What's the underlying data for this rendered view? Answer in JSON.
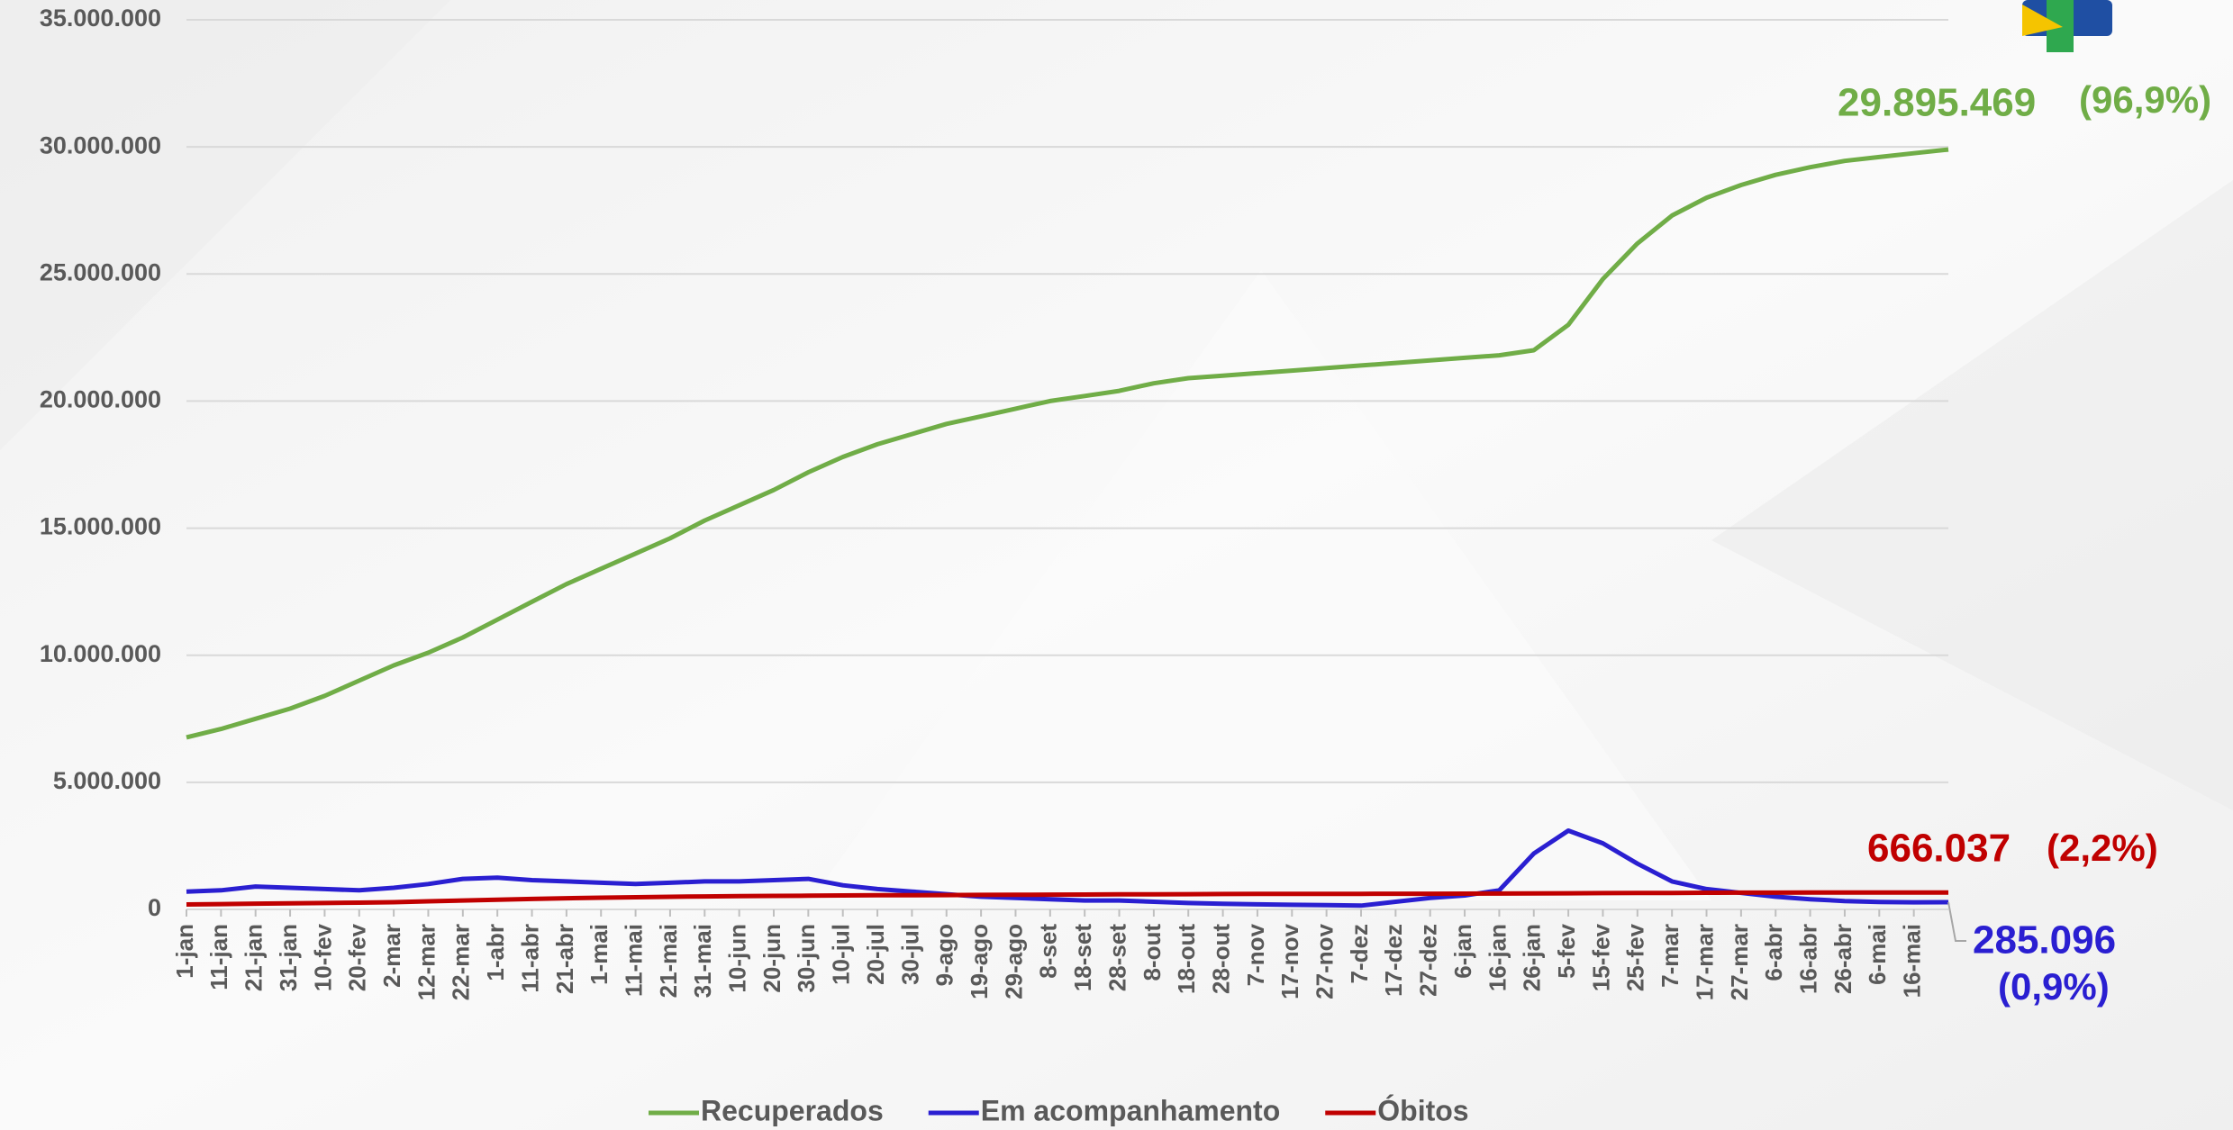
{
  "chart_data": {
    "type": "line",
    "categories": [
      "1-jan",
      "11-jan",
      "21-jan",
      "31-jan",
      "10-fev",
      "20-fev",
      "2-mar",
      "12-mar",
      "22-mar",
      "1-abr",
      "11-abr",
      "21-abr",
      "1-mai",
      "11-mai",
      "21-mai",
      "31-mai",
      "10-jun",
      "20-jun",
      "30-jun",
      "10-jul",
      "20-jul",
      "30-jul",
      "9-ago",
      "19-ago",
      "29-ago",
      "8-set",
      "18-set",
      "28-set",
      "8-out",
      "18-out",
      "28-out",
      "7-nov",
      "17-nov",
      "27-nov",
      "7-dez",
      "17-dez",
      "27-dez",
      "6-jan",
      "16-jan",
      "26-jan",
      "5-fev",
      "15-fev",
      "25-fev",
      "7-mar",
      "17-mar",
      "27-mar",
      "6-abr",
      "16-abr",
      "26-abr",
      "6-mai",
      "16-mai",
      null
    ],
    "series": [
      {
        "name": "Recuperados",
        "color": "#70ad47",
        "end_label": "29.895.469",
        "end_share": "(96,9%)",
        "values": [
          6770000,
          7100000,
          7500000,
          7900000,
          8400000,
          9000000,
          9600000,
          10100000,
          10700000,
          11400000,
          12100000,
          12800000,
          13400000,
          14000000,
          14600000,
          15300000,
          15900000,
          16500000,
          17200000,
          17800000,
          18300000,
          18700000,
          19100000,
          19400000,
          19700000,
          20000000,
          20200000,
          20400000,
          20700000,
          20900000,
          21000000,
          21100000,
          21200000,
          21300000,
          21400000,
          21500000,
          21600000,
          21700000,
          21800000,
          22000000,
          23000000,
          24800000,
          26200000,
          27300000,
          28000000,
          28500000,
          28900000,
          29200000,
          29450000,
          29600000,
          29750000,
          29895469
        ]
      },
      {
        "name": "Em acompanhamento",
        "color": "#2a1fd1",
        "end_label": "285.096",
        "end_share": "(0,9%)",
        "values": [
          700000,
          750000,
          900000,
          850000,
          800000,
          750000,
          850000,
          1000000,
          1200000,
          1250000,
          1150000,
          1100000,
          1050000,
          1000000,
          1050000,
          1100000,
          1100000,
          1150000,
          1200000,
          950000,
          800000,
          700000,
          600000,
          500000,
          450000,
          400000,
          350000,
          350000,
          300000,
          250000,
          220000,
          200000,
          180000,
          170000,
          150000,
          300000,
          450000,
          550000,
          750000,
          2200000,
          3100000,
          2600000,
          1800000,
          1100000,
          800000,
          650000,
          500000,
          400000,
          330000,
          290000,
          280000,
          285096
        ]
      },
      {
        "name": "Óbitos",
        "color": "#c00000",
        "end_label": "666.037",
        "end_share": "(2,2%)",
        "values": [
          195000,
          210000,
          225000,
          240000,
          250000,
          265000,
          285000,
          320000,
          350000,
          380000,
          410000,
          440000,
          460000,
          480000,
          495000,
          510000,
          520000,
          530000,
          540000,
          550000,
          555000,
          560000,
          565000,
          570000,
          575000,
          580000,
          585000,
          590000,
          595000,
          600000,
          605000,
          608000,
          610000,
          612000,
          614000,
          616000,
          618000,
          620000,
          625000,
          630000,
          635000,
          640000,
          645000,
          650000,
          655000,
          658000,
          660000,
          662000,
          663000,
          664000,
          665000,
          666037
        ]
      }
    ],
    "ylim": [
      0,
      35000000
    ],
    "yticks": [
      0,
      {
        "value": 5000000,
        "label": "5.000.000"
      },
      {
        "value": 10000000,
        "label": "10.000.000"
      },
      {
        "value": 15000000,
        "label": "15.000.000"
      },
      {
        "value": 20000000,
        "label": "20.000.000"
      },
      {
        "value": 25000000,
        "label": "25.000.000"
      },
      {
        "value": 30000000,
        "label": "30.000.000"
      },
      {
        "value": 35000000,
        "label": "35.000.000"
      }
    ],
    "grid": true,
    "legend": "bottom"
  }
}
